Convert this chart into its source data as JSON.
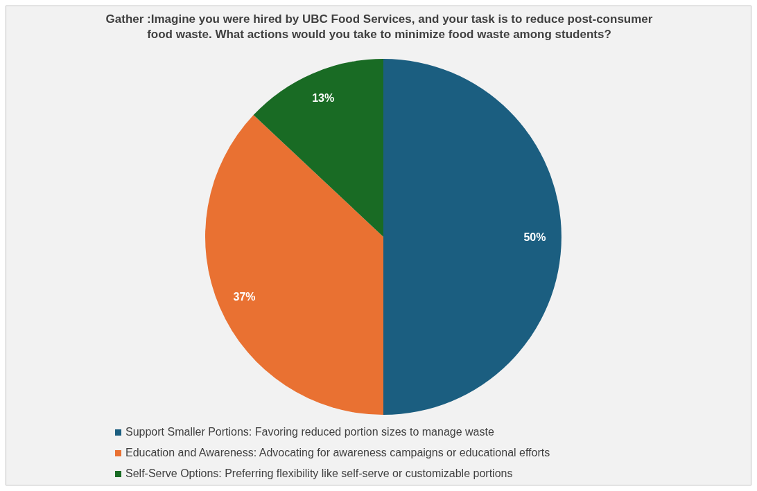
{
  "chart_data": {
    "type": "pie",
    "title": "Gather :Imagine you were hired by UBC Food Services, and your task is to reduce post-consumer food waste. What actions would you take to minimize food waste among students?",
    "categories": [
      "Support Smaller Portions: Favoring reduced portion sizes to manage waste",
      "Education and Awareness: Advocating for awareness campaigns or educational efforts",
      "Self-Serve Options: Preferring flexibility like self-serve or customizable portions"
    ],
    "values": [
      50,
      37,
      13
    ],
    "colors": [
      "#1b5e80",
      "#e97132",
      "#196b24"
    ],
    "value_labels": [
      "50%",
      "37%",
      "13%"
    ],
    "legend": "bottom"
  }
}
